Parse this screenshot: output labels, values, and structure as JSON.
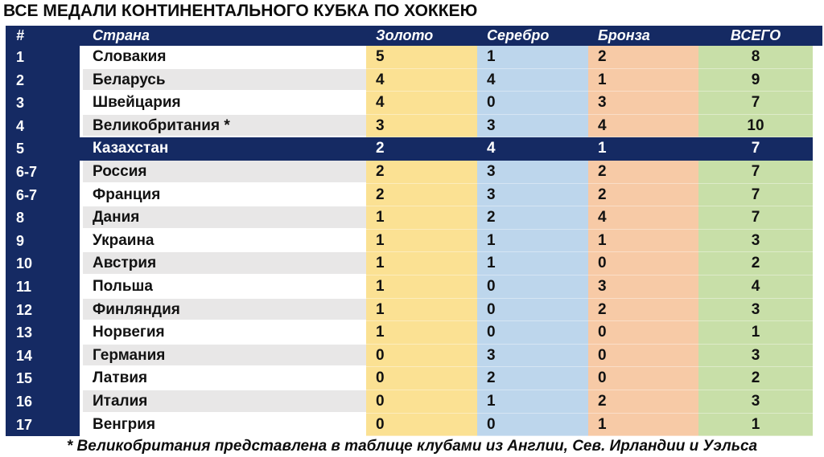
{
  "title": "ВСЕ МЕДАЛИ КОНТИНЕНТАЛЬНОГО КУБКА ПО ХОККЕЮ",
  "footnote": "* Великобритания представлена в таблице клубами из Англии, Сев. Ирландии и Уэльса",
  "colors": {
    "navy": "#152A63",
    "gold_col": "#FBE193",
    "silver_col": "#BDD6EC",
    "bronze_col": "#F7CAA6",
    "total_col": "#C8DFA8",
    "stripe_gray": "#E8E7E7",
    "stripe_white": "#FFFFFF"
  },
  "table": {
    "headers": {
      "rank": "#",
      "country": "Страна",
      "gold": "Золото",
      "silver": "Серебро",
      "bronze": "Бронза",
      "total": "ВСЕГО"
    },
    "rows": [
      {
        "rank": "1",
        "country": "Словакия",
        "gold": "5",
        "silver": "1",
        "bronze": "2",
        "total": "8",
        "highlight": false
      },
      {
        "rank": "2",
        "country": "Беларусь",
        "gold": "4",
        "silver": "4",
        "bronze": "1",
        "total": "9",
        "highlight": false
      },
      {
        "rank": "3",
        "country": "Швейцария",
        "gold": "4",
        "silver": "0",
        "bronze": "3",
        "total": "7",
        "highlight": false
      },
      {
        "rank": "4",
        "country": "Великобритания *",
        "gold": "3",
        "silver": "3",
        "bronze": "4",
        "total": "10",
        "highlight": false
      },
      {
        "rank": "5",
        "country": "Казахстан",
        "gold": "2",
        "silver": "4",
        "bronze": "1",
        "total": "7",
        "highlight": true
      },
      {
        "rank": "6-7",
        "country": "Россия",
        "gold": "2",
        "silver": "3",
        "bronze": "2",
        "total": "7",
        "highlight": false
      },
      {
        "rank": "6-7",
        "country": "Франция",
        "gold": "2",
        "silver": "3",
        "bronze": "2",
        "total": "7",
        "highlight": false
      },
      {
        "rank": "8",
        "country": "Дания",
        "gold": "1",
        "silver": "2",
        "bronze": "4",
        "total": "7",
        "highlight": false
      },
      {
        "rank": "9",
        "country": "Украина",
        "gold": "1",
        "silver": "1",
        "bronze": "1",
        "total": "3",
        "highlight": false
      },
      {
        "rank": "10",
        "country": "Австрия",
        "gold": "1",
        "silver": "1",
        "bronze": "0",
        "total": "2",
        "highlight": false
      },
      {
        "rank": "11",
        "country": "Польша",
        "gold": "1",
        "silver": "0",
        "bronze": "3",
        "total": "4",
        "highlight": false
      },
      {
        "rank": "12",
        "country": "Финляндия",
        "gold": "1",
        "silver": "0",
        "bronze": "2",
        "total": "3",
        "highlight": false
      },
      {
        "rank": "13",
        "country": "Норвегия",
        "gold": "1",
        "silver": "0",
        "bronze": "0",
        "total": "1",
        "highlight": false
      },
      {
        "rank": "14",
        "country": "Германия",
        "gold": "0",
        "silver": "3",
        "bronze": "0",
        "total": "3",
        "highlight": false
      },
      {
        "rank": "15",
        "country": "Латвия",
        "gold": "0",
        "silver": "2",
        "bronze": "0",
        "total": "2",
        "highlight": false
      },
      {
        "rank": "16",
        "country": "Италия",
        "gold": "0",
        "silver": "1",
        "bronze": "2",
        "total": "3",
        "highlight": false
      },
      {
        "rank": "17",
        "country": "Венгрия",
        "gold": "0",
        "silver": "0",
        "bronze": "1",
        "total": "1",
        "highlight": false
      }
    ]
  },
  "chart_data": {
    "type": "table",
    "title": "ВСЕ МЕДАЛИ КОНТИНЕНТАЛЬНОГО КУБКА ПО ХОККЕЮ",
    "columns": [
      "#",
      "Страна",
      "Золото",
      "Серебро",
      "Бронза",
      "ВСЕГО"
    ],
    "rows": [
      [
        "1",
        "Словакия",
        5,
        1,
        2,
        8
      ],
      [
        "2",
        "Беларусь",
        4,
        4,
        1,
        9
      ],
      [
        "3",
        "Швейцария",
        4,
        0,
        3,
        7
      ],
      [
        "4",
        "Великобритания *",
        3,
        3,
        4,
        10
      ],
      [
        "5",
        "Казахстан",
        2,
        4,
        1,
        7
      ],
      [
        "6-7",
        "Россия",
        2,
        3,
        2,
        7
      ],
      [
        "6-7",
        "Франция",
        2,
        3,
        2,
        7
      ],
      [
        "8",
        "Дания",
        1,
        2,
        4,
        7
      ],
      [
        "9",
        "Украина",
        1,
        1,
        1,
        3
      ],
      [
        "10",
        "Австрия",
        1,
        1,
        0,
        2
      ],
      [
        "11",
        "Польша",
        1,
        0,
        3,
        4
      ],
      [
        "12",
        "Финляндия",
        1,
        0,
        2,
        3
      ],
      [
        "13",
        "Норвегия",
        1,
        0,
        0,
        1
      ],
      [
        "14",
        "Германия",
        0,
        3,
        0,
        3
      ],
      [
        "15",
        "Латвия",
        0,
        2,
        0,
        2
      ],
      [
        "16",
        "Италия",
        0,
        1,
        2,
        3
      ],
      [
        "17",
        "Венгрия",
        0,
        0,
        1,
        1
      ]
    ],
    "highlighted_row": "Казахстан",
    "footnote": "* Великобритания представлена в таблице клубами из Англии, Сев. Ирландии и Уэльса"
  }
}
